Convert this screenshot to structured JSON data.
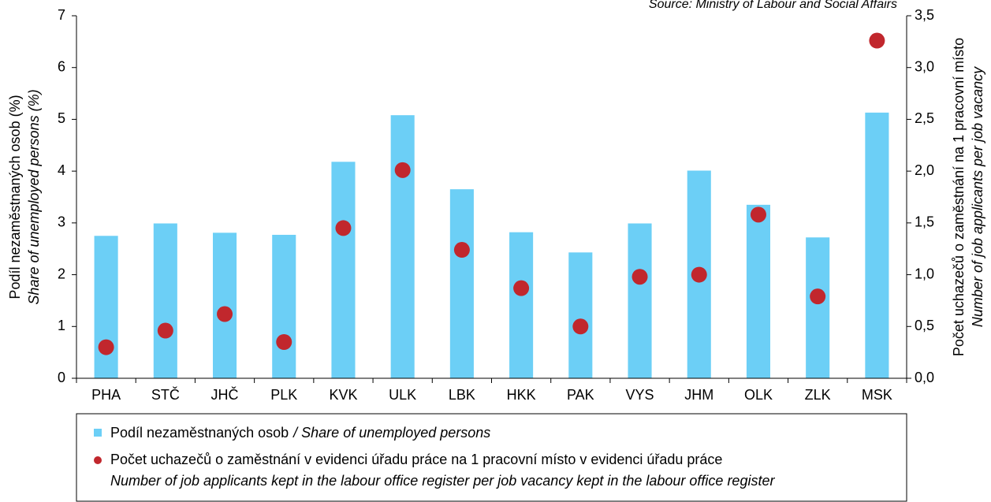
{
  "chart_data": {
    "type": "bar",
    "source": "Source: Ministry of Labour and Social Affairs",
    "ylabel": "Podíl nezaměstnaných osob (%)",
    "ylabel_en": "Share of unemployed persons (%)",
    "y2label": "Počet uchazečů o zaměstnání na 1 pracovní místo",
    "y2label_en": "Number of job applicants per job vacancy",
    "categories": [
      "PHA",
      "STČ",
      "JHČ",
      "PLK",
      "KVK",
      "ULK",
      "LBK",
      "HKK",
      "PAK",
      "VYS",
      "JHM",
      "OLK",
      "ZLK",
      "MSK"
    ],
    "series": [
      {
        "name": "Podíl nezaměstnaných osob",
        "name_en": "/ Share of unemployed persons",
        "type": "bar",
        "color": "#6ccff6",
        "values": [
          2.75,
          2.99,
          2.81,
          2.77,
          4.18,
          5.08,
          3.65,
          2.82,
          2.43,
          2.99,
          4.01,
          3.35,
          2.72,
          5.13
        ]
      },
      {
        "name": "Počet uchazečů o zaměstnání v evidenci úřadu práce na 1 pracovní místo v evidenci úřadu práce",
        "name_en": "Number of job applicants kept in the labour office register per job vacancy kept in the labour office register",
        "type": "scatter",
        "axis": "y2",
        "color": "#c1272d",
        "values": [
          0.3,
          0.46,
          0.62,
          0.35,
          1.45,
          2.01,
          1.24,
          0.87,
          0.5,
          0.98,
          1.0,
          1.58,
          0.79,
          3.26
        ]
      }
    ],
    "ylim": [
      0,
      7
    ],
    "yticks": [
      0,
      1,
      2,
      3,
      4,
      5,
      6,
      7
    ],
    "y2lim": [
      0,
      3.5
    ],
    "y2ticks": [
      {
        "value": 0,
        "label": "0,0"
      },
      {
        "value": 0.5,
        "label": "0,5"
      },
      {
        "value": 1,
        "label": "1,0"
      },
      {
        "value": 1.5,
        "label": "1,5"
      },
      {
        "value": 2,
        "label": "2,0"
      },
      {
        "value": 2.5,
        "label": "2,5"
      },
      {
        "value": 3,
        "label": "3,0"
      },
      {
        "value": 3.5,
        "label": "3,5"
      }
    ],
    "grid": false
  }
}
